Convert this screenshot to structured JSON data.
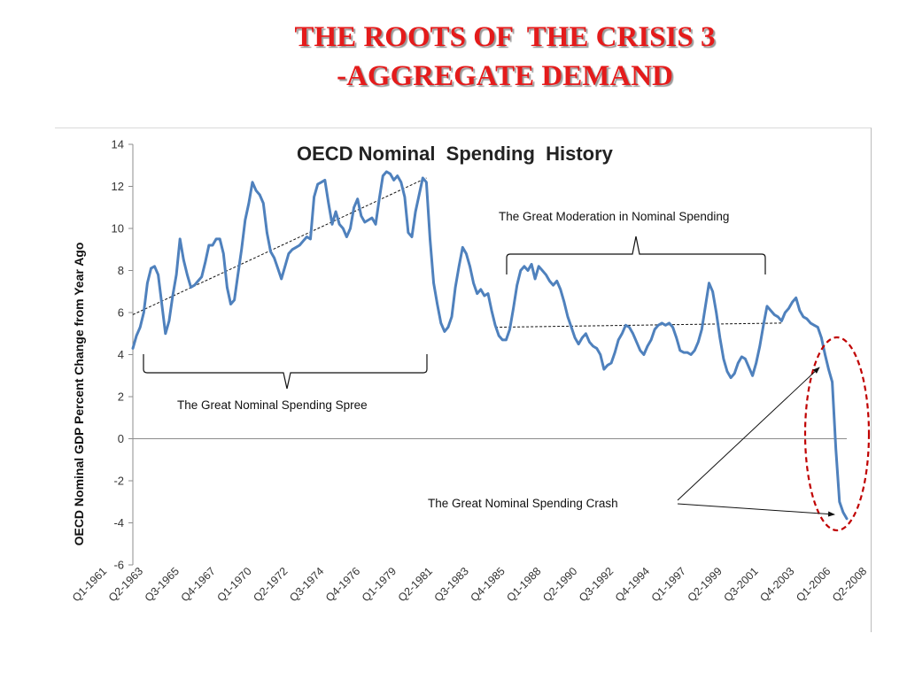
{
  "slide": {
    "title_line1": "THE ROOTS OF  THE CRISIS 3",
    "title_line2": "-AGGREGATE DEMAND"
  },
  "colors": {
    "title": "#e41b1b",
    "series_line": "#4f81bd",
    "crash_ellipse": "#c00000"
  },
  "chart_data": {
    "type": "line",
    "title": "OECD Nominal  Spending  History",
    "xlabel": "",
    "ylabel": "OECD Nominal GDP Percent Change from Year Ago",
    "ylim": [
      -6,
      14
    ],
    "yticks": [
      14,
      12,
      10,
      8,
      6,
      4,
      2,
      0,
      -2,
      -4,
      -6
    ],
    "grid": false,
    "legend": "none",
    "x_tick_labels": [
      "Q1-1961",
      "Q2-1963",
      "Q3-1965",
      "Q4-1967",
      "Q1-1970",
      "Q2-1972",
      "Q3-1974",
      "Q4-1976",
      "Q1-1979",
      "Q2-1981",
      "Q3-1983",
      "Q4-1985",
      "Q1-1988",
      "Q2-1990",
      "Q3-1992",
      "Q4-1994",
      "Q1-1997",
      "Q2-1999",
      "Q3-2001",
      "Q4-2003",
      "Q1-2006",
      "Q2-2008"
    ],
    "series": [
      {
        "values": [
          4.3,
          4.9,
          5.3,
          6.0,
          7.4,
          8.1,
          8.2,
          7.8,
          6.4,
          5.0,
          5.6,
          6.8,
          7.8,
          9.5,
          8.5,
          7.8,
          7.2,
          7.3,
          7.5,
          7.7,
          8.4,
          9.2,
          9.2,
          9.5,
          9.5,
          8.8,
          7.2,
          6.4,
          6.6,
          7.8,
          9.0,
          10.4,
          11.2,
          12.2,
          11.8,
          11.6,
          11.2,
          9.8,
          8.9,
          8.6,
          8.1,
          7.6,
          8.2,
          8.8,
          9.0,
          9.1,
          9.2,
          9.4,
          9.6,
          9.5,
          11.5,
          12.1,
          12.2,
          12.3,
          11.2,
          10.2,
          10.8,
          10.2,
          10.0,
          9.6,
          10.0,
          11.0,
          11.4,
          10.6,
          10.3,
          10.4,
          10.5,
          10.2,
          11.4,
          12.5,
          12.7,
          12.6,
          12.3,
          12.5,
          12.2,
          11.5,
          9.8,
          9.6,
          10.8,
          11.6,
          12.4,
          12.2,
          9.5,
          7.4,
          6.4,
          5.5,
          5.1,
          5.3,
          5.8,
          7.2,
          8.2,
          9.1,
          8.8,
          8.2,
          7.4,
          6.9,
          7.1,
          6.8,
          6.9,
          6.1,
          5.4,
          4.9,
          4.7,
          4.7,
          5.2,
          6.2,
          7.3,
          8.0,
          8.2,
          8.0,
          8.3,
          7.6,
          8.2,
          8.0,
          7.8,
          7.5,
          7.3,
          7.5,
          7.1,
          6.5,
          5.8,
          5.3,
          4.8,
          4.5,
          4.8,
          5.0,
          4.6,
          4.4,
          4.3,
          4.0,
          3.3,
          3.5,
          3.6,
          4.1,
          4.7,
          5.0,
          5.4,
          5.3,
          5.0,
          4.6,
          4.2,
          4.0,
          4.4,
          4.7,
          5.2,
          5.4,
          5.5,
          5.4,
          5.5,
          5.3,
          4.8,
          4.2,
          4.1,
          4.1,
          4.0,
          4.2,
          4.6,
          5.2,
          6.3,
          7.4,
          7.0,
          6.0,
          4.8,
          3.8,
          3.2,
          2.9,
          3.1,
          3.6,
          3.9,
          3.8,
          3.4,
          3.0,
          3.6,
          4.4,
          5.4,
          6.3,
          6.1,
          5.9,
          5.8,
          5.6,
          6.0,
          6.2,
          6.5,
          6.7,
          6.1,
          5.8,
          5.7,
          5.5,
          5.4,
          5.3,
          4.8,
          4.0,
          3.3,
          2.7,
          -0.5,
          -3.0,
          -3.5,
          -3.8
        ]
      }
    ],
    "annotations": [
      {
        "text": "The Great Nominal Spending Spree"
      },
      {
        "text": "The Great Moderation in Nominal Spending"
      },
      {
        "text": "The Great Nominal Spending Crash"
      }
    ]
  }
}
